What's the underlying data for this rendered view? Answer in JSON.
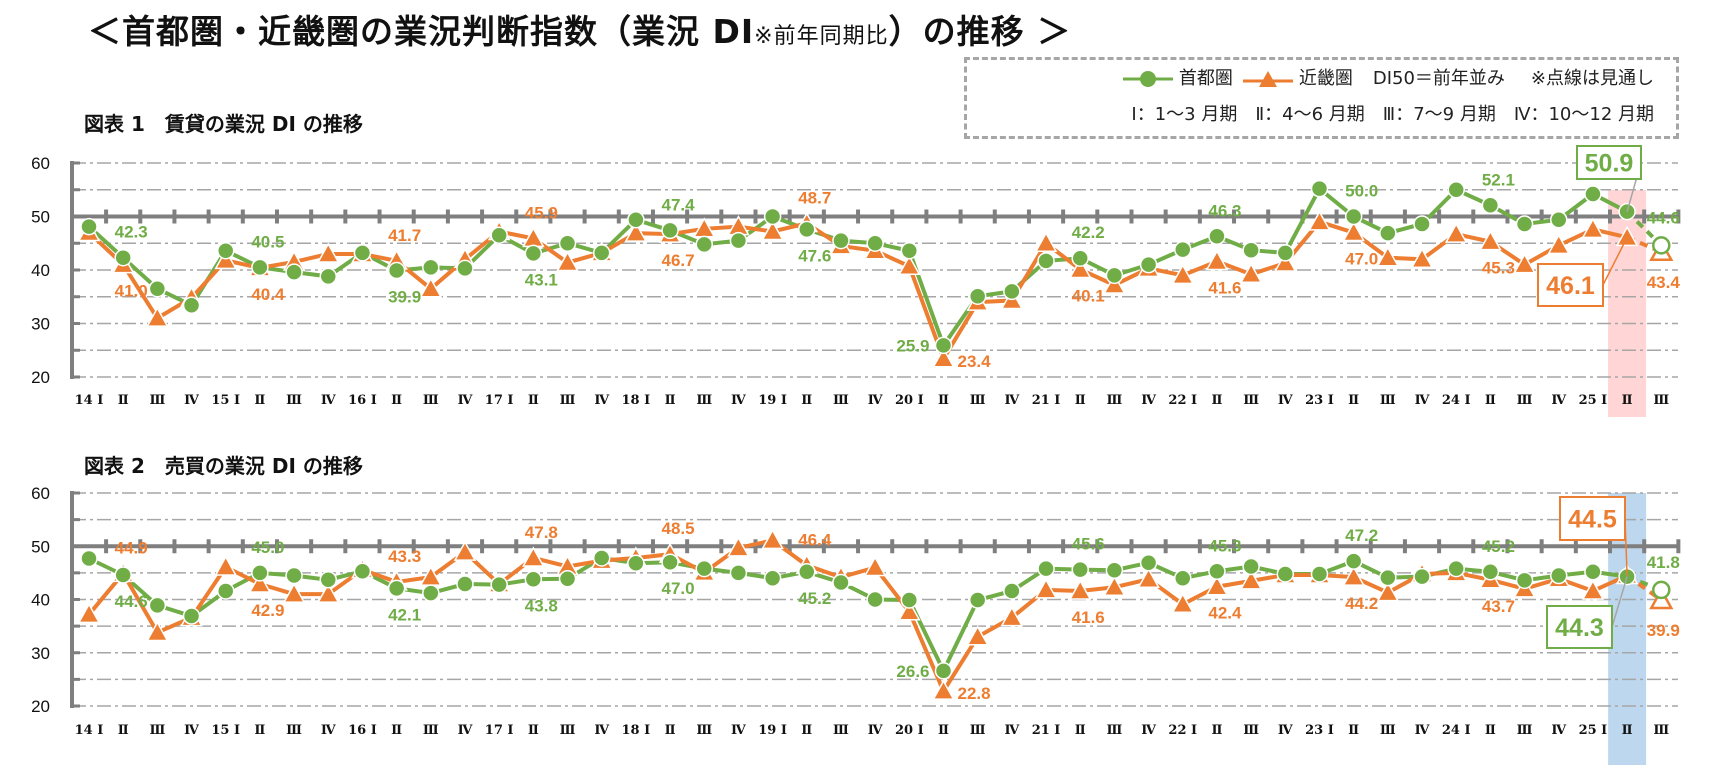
{
  "title": {
    "main_pre": "＜首都圏・近畿圏の業況判断指数（業況 DI",
    "main_small": "※前年同期比",
    "main_post": "）の推移 ＞"
  },
  "legend": {
    "series1": "首都圏",
    "series2": "近畿圏",
    "note1": "DI50＝前年並み",
    "note2": "※点線は見通し",
    "quarters": "Ⅰ：1～3 月期　Ⅱ：4～6 月期　Ⅲ：7～9 月期　Ⅳ：10～12 月期"
  },
  "colors": {
    "series1": "#70ad47",
    "series2": "#ed7d31",
    "highlight1": "#ffd5d5",
    "highlight2": "#bdd7ee",
    "axis": "#7f7f7f"
  },
  "chart_data": [
    {
      "type": "line",
      "title": "図表 1　賃貸の業況 DI の推移",
      "ylim": [
        20,
        60
      ],
      "yticks": [
        20,
        30,
        40,
        50,
        60
      ],
      "reference_line": 50,
      "grid": true,
      "categories": [
        "14 Ⅰ",
        "Ⅱ",
        "Ⅲ",
        "Ⅳ",
        "15 Ⅰ",
        "Ⅱ",
        "Ⅲ",
        "Ⅳ",
        "16 Ⅰ",
        "Ⅱ",
        "Ⅲ",
        "Ⅳ",
        "17 Ⅰ",
        "Ⅱ",
        "Ⅲ",
        "Ⅳ",
        "18 Ⅰ",
        "Ⅱ",
        "Ⅲ",
        "Ⅳ",
        "19 Ⅰ",
        "Ⅱ",
        "Ⅲ",
        "Ⅳ",
        "20 Ⅰ",
        "Ⅱ",
        "Ⅲ",
        "Ⅳ",
        "21 Ⅰ",
        "Ⅱ",
        "Ⅲ",
        "Ⅳ",
        "22 Ⅰ",
        "Ⅱ",
        "Ⅲ",
        "Ⅳ",
        "23 Ⅰ",
        "Ⅱ",
        "Ⅲ",
        "Ⅳ",
        "24 Ⅰ",
        "Ⅱ",
        "Ⅲ",
        "Ⅳ",
        "25 Ⅰ",
        "Ⅱ",
        "Ⅲ"
      ],
      "highlight_category": "25 Ⅱ",
      "forecast_from_category": "25 Ⅲ",
      "series": [
        {
          "name": "首都圏",
          "values": [
            48.1,
            42.3,
            36.5,
            33.4,
            43.6,
            40.5,
            39.6,
            38.8,
            43.2,
            39.9,
            40.5,
            40.3,
            46.5,
            43.1,
            45.0,
            43.2,
            49.4,
            47.4,
            44.8,
            45.5,
            50.0,
            47.6,
            45.5,
            45.0,
            43.6,
            25.9,
            35.1,
            36.0,
            41.7,
            42.2,
            39.0,
            41.0,
            43.8,
            46.3,
            43.7,
            43.2,
            55.2,
            50.0,
            46.9,
            48.6,
            55.0,
            52.1,
            48.6,
            49.4,
            54.2,
            50.9,
            44.6
          ]
        },
        {
          "name": "近畿圏",
          "values": [
            47.0,
            41.0,
            31.0,
            34.8,
            41.8,
            40.4,
            41.5,
            43.0,
            43.0,
            41.7,
            36.5,
            42.0,
            47.2,
            45.9,
            41.4,
            43.2,
            46.9,
            46.7,
            47.7,
            48.1,
            47.2,
            48.7,
            44.5,
            43.6,
            40.7,
            23.4,
            34.0,
            34.3,
            45.0,
            40.1,
            37.2,
            40.3,
            39.0,
            41.6,
            39.2,
            41.3,
            49.0,
            47.0,
            42.3,
            42.0,
            46.7,
            45.3,
            41.0,
            44.6,
            47.6,
            46.1,
            43.4
          ]
        }
      ],
      "data_labels": {
        "首都圏": {
          "Ⅱ": [
            "42.3",
            "40.5",
            "39.9",
            "43.1",
            "47.4",
            "47.6",
            "25.9",
            "42.2",
            "46.3",
            "50.0",
            "52.1",
            "50.9"
          ],
          "latest_forecast": "44.6"
        },
        "近畿圏": {
          "Ⅱ": [
            "41.0",
            "40.4",
            "41.7",
            "45.9",
            "46.7",
            "48.7",
            "23.4",
            "40.1",
            "41.6",
            "47.0",
            "45.3",
            "46.1"
          ],
          "latest_forecast": "43.4"
        }
      }
    },
    {
      "type": "line",
      "title": "図表 2　売買の業況 DI の推移",
      "ylim": [
        20,
        60
      ],
      "yticks": [
        20,
        30,
        40,
        50,
        60
      ],
      "reference_line": 50,
      "grid": true,
      "categories": [
        "14 Ⅰ",
        "Ⅱ",
        "Ⅲ",
        "Ⅳ",
        "15 Ⅰ",
        "Ⅱ",
        "Ⅲ",
        "Ⅳ",
        "16 Ⅰ",
        "Ⅱ",
        "Ⅲ",
        "Ⅳ",
        "17 Ⅰ",
        "Ⅱ",
        "Ⅲ",
        "Ⅳ",
        "18 Ⅰ",
        "Ⅱ",
        "Ⅲ",
        "Ⅳ",
        "19 Ⅰ",
        "Ⅱ",
        "Ⅲ",
        "Ⅳ",
        "20 Ⅰ",
        "Ⅱ",
        "Ⅲ",
        "Ⅳ",
        "21 Ⅰ",
        "Ⅱ",
        "Ⅲ",
        "Ⅳ",
        "22 Ⅰ",
        "Ⅱ",
        "Ⅲ",
        "Ⅳ",
        "23 Ⅰ",
        "Ⅱ",
        "Ⅲ",
        "Ⅳ",
        "24 Ⅰ",
        "Ⅱ",
        "Ⅲ",
        "Ⅳ",
        "25 Ⅰ",
        "Ⅱ",
        "Ⅲ"
      ],
      "highlight_category": "25 Ⅱ",
      "forecast_from_category": "25 Ⅲ",
      "series": [
        {
          "name": "首都圏",
          "values": [
            47.7,
            44.6,
            38.9,
            36.9,
            41.6,
            45.0,
            44.5,
            43.7,
            45.3,
            42.1,
            41.2,
            42.9,
            42.8,
            43.8,
            43.9,
            47.8,
            46.8,
            47.0,
            45.8,
            45.0,
            44.0,
            45.2,
            43.2,
            40.0,
            39.9,
            26.6,
            39.9,
            41.6,
            45.8,
            45.6,
            45.5,
            46.9,
            44.0,
            45.3,
            46.2,
            44.8,
            44.8,
            47.2,
            44.1,
            44.3,
            45.8,
            45.2,
            43.6,
            44.5,
            45.2,
            44.3,
            41.8
          ]
        },
        {
          "name": "近畿圏",
          "values": [
            37.2,
            44.9,
            33.8,
            36.6,
            46.1,
            42.9,
            41.0,
            41.0,
            45.6,
            43.3,
            44.2,
            48.9,
            42.9,
            47.8,
            46.2,
            47.3,
            47.8,
            48.5,
            45.1,
            49.7,
            51.1,
            46.4,
            44.2,
            46.0,
            37.7,
            22.8,
            33.0,
            36.6,
            41.8,
            41.6,
            42.3,
            43.8,
            39.1,
            42.4,
            43.5,
            44.6,
            44.6,
            44.2,
            41.3,
            44.8,
            45.0,
            43.7,
            42.0,
            43.9,
            41.6,
            44.5,
            39.9
          ]
        }
      ],
      "data_labels": {
        "首都圏": {
          "Ⅱ": [
            "44.6",
            "45.0",
            "42.1",
            "43.8",
            "47.0",
            "45.2",
            "26.6",
            "45.6",
            "45.3",
            "47.2",
            "45.2",
            "44.3"
          ],
          "latest_forecast": "41.8"
        },
        "近畿圏": {
          "Ⅱ": [
            "44.9",
            "42.9",
            "43.3",
            "47.8",
            "48.5",
            "46.4",
            "22.8",
            "41.6",
            "42.4",
            "44.2",
            "43.7",
            "44.5"
          ],
          "latest_forecast": "39.9"
        }
      }
    }
  ]
}
